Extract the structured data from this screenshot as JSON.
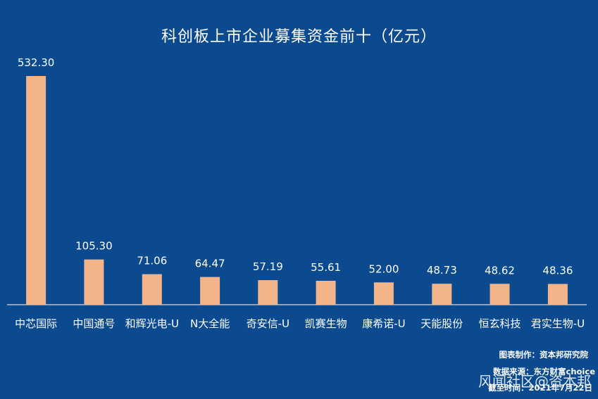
{
  "chart_data": {
    "type": "bar",
    "title": "科创板上市企业募集资金前十（亿元）",
    "categories": [
      "中芯国际",
      "中国通号",
      "和辉光电-U",
      "N大全能",
      "奇安信-U",
      "凯赛生物",
      "康希诺-U",
      "天能股份",
      "恒玄科技",
      "君实生物-U"
    ],
    "values": [
      532.3,
      105.3,
      71.06,
      64.47,
      57.19,
      55.61,
      52.0,
      48.73,
      48.62,
      48.36
    ],
    "value_labels": [
      "532.30",
      "105.30",
      "71.06",
      "64.47",
      "57.19",
      "55.61",
      "52.00",
      "48.73",
      "48.62",
      "48.36"
    ],
    "xlabel": "",
    "ylabel": "",
    "ylim": [
      0,
      532.3
    ],
    "grid": false,
    "legend": "none",
    "colors": {
      "background": "#0b4a8f",
      "bar": "#f3b48a",
      "text": "#ffffff",
      "axis": "#ffffff"
    }
  },
  "footer": {
    "credit": "图表制作：资本邦研究院",
    "source": "数据来源：东方财富choice",
    "date": "截至时间：2021年7月22日",
    "watermark": "风闻社区@资本邦"
  }
}
